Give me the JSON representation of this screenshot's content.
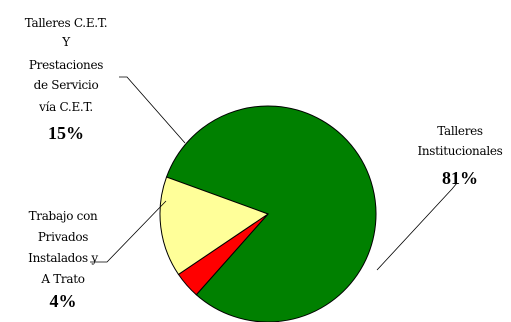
{
  "chart_data": {
    "type": "pie",
    "title": "",
    "slices": [
      {
        "name_lines": [
          "Talleres",
          "Institucionales"
        ],
        "value": 81,
        "value_label": "81%",
        "color": "#008000"
      },
      {
        "name_lines": [
          "Trabajo con",
          "Privados",
          "Instalados y",
          "A Trato"
        ],
        "value": 4,
        "value_label": "4%",
        "color": "#ff0000"
      },
      {
        "name_lines": [
          "Talleres C.E.T.",
          "Y",
          "Prestaciones",
          "de Servicio",
          "vía C.E.T."
        ],
        "value": 15,
        "value_label": "15%",
        "color": "#ffff99"
      }
    ],
    "legend": "none",
    "data_labels": "outside-with-leader-lines"
  }
}
